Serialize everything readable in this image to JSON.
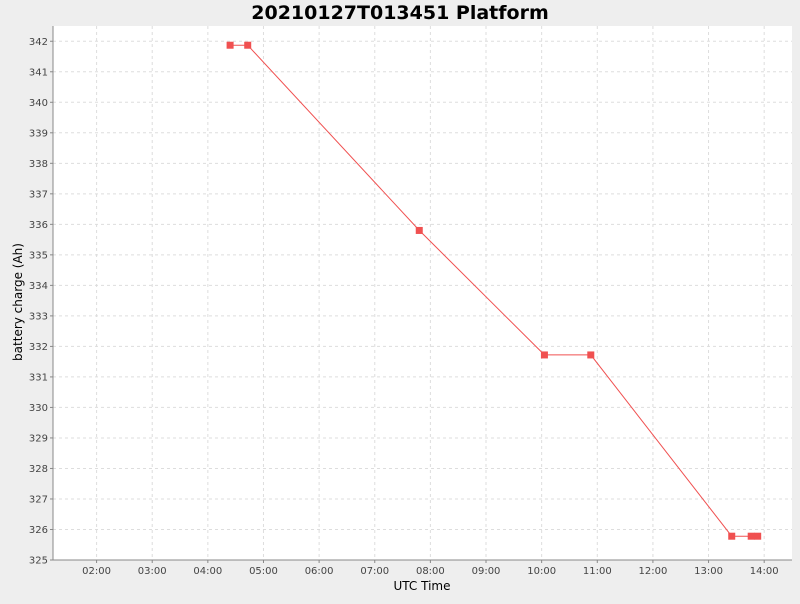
{
  "chart_data": {
    "type": "line",
    "title": "20210127T013451 Platform",
    "xlabel": "UTC Time",
    "ylabel": "battery charge (Ah)",
    "x_ticks": [
      "02:00",
      "03:00",
      "04:00",
      "05:00",
      "06:00",
      "07:00",
      "08:00",
      "09:00",
      "10:00",
      "11:00",
      "12:00",
      "13:00",
      "14:00"
    ],
    "y_ticks": [
      "325",
      "326",
      "327",
      "328",
      "329",
      "330",
      "331",
      "332",
      "333",
      "334",
      "335",
      "336",
      "337",
      "338",
      "339",
      "340",
      "341",
      "342"
    ],
    "xlim": [
      "01:13",
      "14:30"
    ],
    "ylim": [
      325,
      342.5
    ],
    "grid": true,
    "series": [
      {
        "color": "#f05050",
        "points": [
          {
            "x": "04:24",
            "y": 341.87
          },
          {
            "x": "04:43",
            "y": 341.87
          },
          {
            "x": "07:48",
            "y": 335.8
          },
          {
            "x": "10:03",
            "y": 331.72
          },
          {
            "x": "10:53",
            "y": 331.72
          },
          {
            "x": "13:25",
            "y": 325.78
          },
          {
            "x": "13:46",
            "y": 325.78
          },
          {
            "x": "13:53",
            "y": 325.78
          }
        ]
      }
    ]
  },
  "colors": {
    "background": "#eeeeee",
    "plot_background": "#ffffff",
    "grid": "#dddddd",
    "series": "#f05050"
  }
}
